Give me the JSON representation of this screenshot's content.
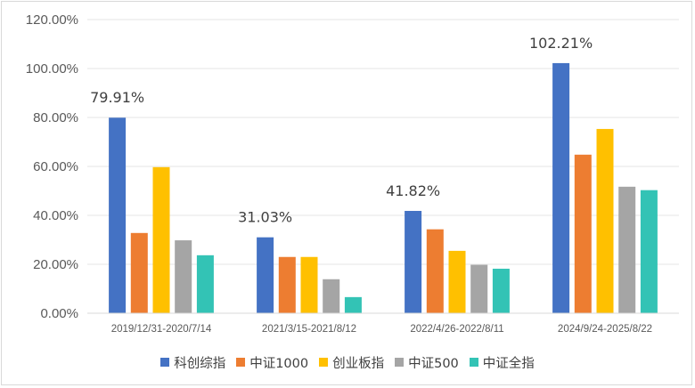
{
  "chart_data": {
    "type": "bar",
    "title": "",
    "xlabel": "",
    "ylabel": "",
    "ylim": [
      0,
      120
    ],
    "y_tick_values": [
      0,
      20,
      40,
      60,
      80,
      100,
      120
    ],
    "y_tick_labels": [
      "0.00%",
      "20.00%",
      "40.00%",
      "60.00%",
      "80.00%",
      "100.00%",
      "120.00%"
    ],
    "grid": true,
    "legend_position": "bottom",
    "categories": [
      "2019/12/31-2020/7/14",
      "2021/3/15-2021/8/12",
      "2022/4/26-2022/8/11",
      "2024/9/24-2025/8/22"
    ],
    "series": [
      {
        "name": "科创综指",
        "color": "#4472c4",
        "values": [
          79.91,
          31.03,
          41.82,
          102.21
        ]
      },
      {
        "name": "中证1000",
        "color": "#ed7d31",
        "values": [
          32.8,
          23.0,
          34.3,
          64.8
        ]
      },
      {
        "name": "创业板指",
        "color": "#ffc000",
        "values": [
          59.7,
          23.0,
          25.5,
          75.3
        ]
      },
      {
        "name": "中证500",
        "color": "#a5a5a5",
        "values": [
          29.8,
          13.9,
          19.8,
          51.7
        ]
      },
      {
        "name": "中证全指",
        "color": "#33c3b5",
        "values": [
          23.7,
          6.6,
          18.2,
          50.3
        ]
      }
    ],
    "data_labels": [
      {
        "series": 0,
        "category": 0,
        "text": "79.91%"
      },
      {
        "series": 0,
        "category": 1,
        "text": "31.03%"
      },
      {
        "series": 0,
        "category": 2,
        "text": "41.82%"
      },
      {
        "series": 0,
        "category": 3,
        "text": "102.21%"
      }
    ]
  }
}
